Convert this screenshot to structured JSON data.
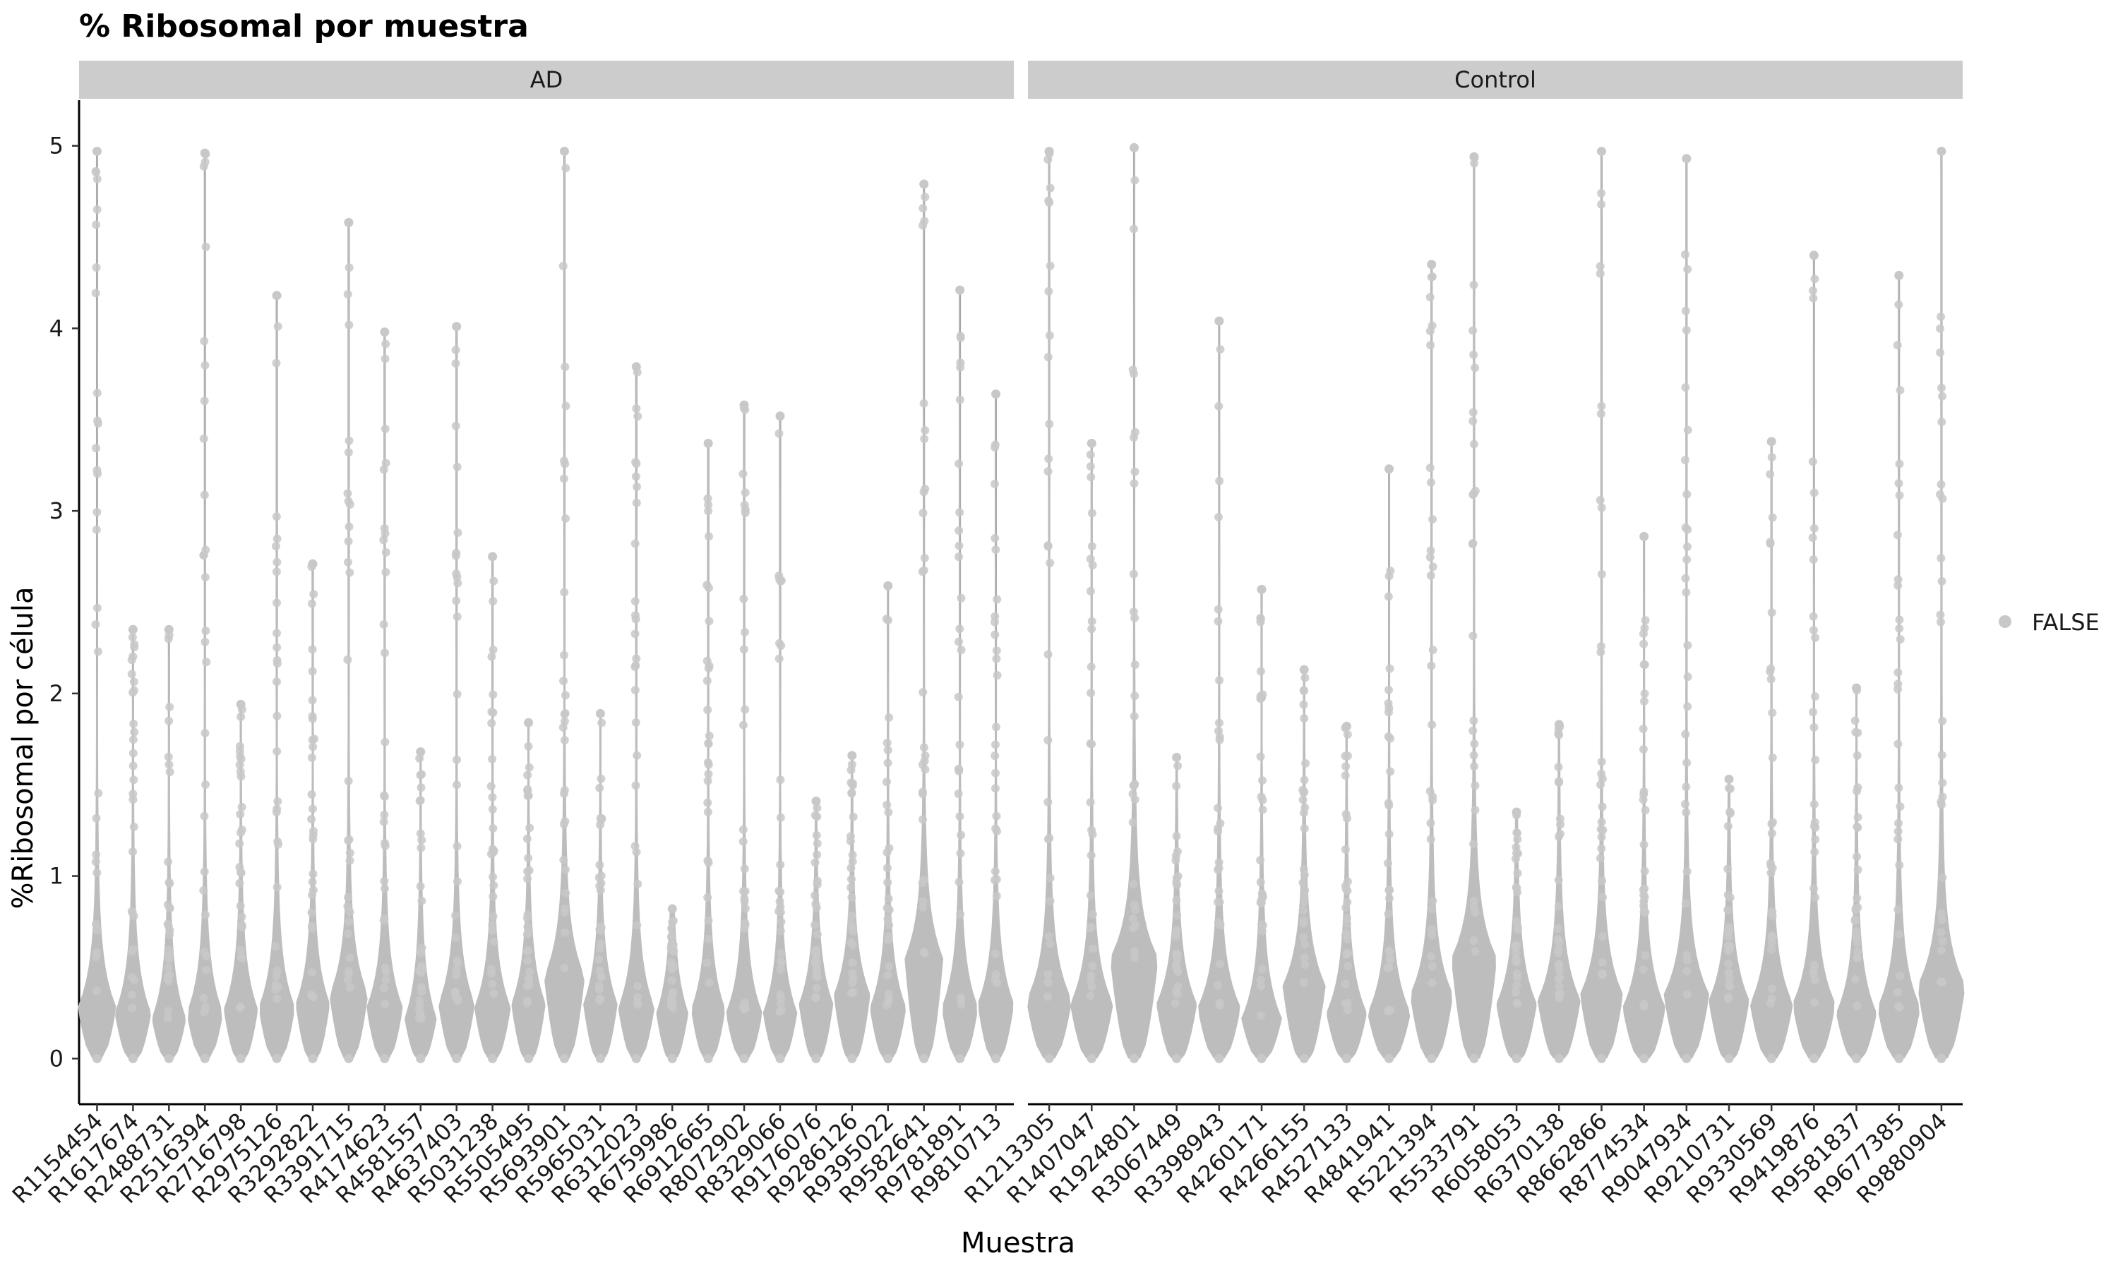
{
  "chart_data": {
    "type": "violin",
    "title": "% Ribosomal por muestra",
    "xlabel": "Muestra",
    "ylabel": "%Ribosomal por célula",
    "ylim": [
      -0.25,
      5.25
    ],
    "y_ticks": [
      0,
      1,
      2,
      3,
      4,
      5
    ],
    "grid": false,
    "legend": {
      "position": "right",
      "entries": [
        "FALSE"
      ]
    },
    "colors": {
      "violin": "#bdbdbd",
      "whisker": "#999999",
      "point": "#c8c8c8",
      "strip": "#cccccc"
    },
    "facets": [
      {
        "name": "AD",
        "samples": [
          {
            "sample": "R1154454",
            "max": 4.97,
            "mode": 0.28,
            "width": 0.9
          },
          {
            "sample": "R1617674",
            "max": 2.35,
            "mode": 0.25,
            "width": 0.85
          },
          {
            "sample": "R2488731",
            "max": 2.35,
            "mode": 0.22,
            "width": 0.8
          },
          {
            "sample": "R2516394",
            "max": 4.96,
            "mode": 0.25,
            "width": 0.85
          },
          {
            "sample": "R2716798",
            "max": 1.94,
            "mode": 0.27,
            "width": 0.8
          },
          {
            "sample": "R2975126",
            "max": 4.18,
            "mode": 0.28,
            "width": 0.85
          },
          {
            "sample": "R3292822",
            "max": 2.71,
            "mode": 0.3,
            "width": 0.8
          },
          {
            "sample": "R3391715",
            "max": 4.58,
            "mode": 0.35,
            "width": 0.9
          },
          {
            "sample": "R4174623",
            "max": 3.98,
            "mode": 0.28,
            "width": 0.85
          },
          {
            "sample": "R4581557",
            "max": 1.68,
            "mode": 0.22,
            "width": 0.75
          },
          {
            "sample": "R4637403",
            "max": 4.01,
            "mode": 0.3,
            "width": 0.85
          },
          {
            "sample": "R5031238",
            "max": 2.75,
            "mode": 0.28,
            "width": 0.85
          },
          {
            "sample": "R5505495",
            "max": 1.84,
            "mode": 0.3,
            "width": 0.8
          },
          {
            "sample": "R5693901",
            "max": 4.97,
            "mode": 0.45,
            "width": 0.95
          },
          {
            "sample": "R5965031",
            "max": 1.89,
            "mode": 0.3,
            "width": 0.8
          },
          {
            "sample": "R6312023",
            "max": 3.79,
            "mode": 0.28,
            "width": 0.85
          },
          {
            "sample": "R6759986",
            "max": 0.82,
            "mode": 0.25,
            "width": 0.75
          },
          {
            "sample": "R6912665",
            "max": 3.37,
            "mode": 0.27,
            "width": 0.8
          },
          {
            "sample": "R8072902",
            "max": 3.58,
            "mode": 0.25,
            "width": 0.85
          },
          {
            "sample": "R8329066",
            "max": 3.52,
            "mode": 0.25,
            "width": 0.8
          },
          {
            "sample": "R9176076",
            "max": 1.41,
            "mode": 0.3,
            "width": 0.8
          },
          {
            "sample": "R9286126",
            "max": 1.66,
            "mode": 0.35,
            "width": 0.85
          },
          {
            "sample": "R9395022",
            "max": 2.59,
            "mode": 0.28,
            "width": 0.85
          },
          {
            "sample": "R9582641",
            "max": 4.79,
            "mode": 0.55,
            "width": 0.9
          },
          {
            "sample": "R9781891",
            "max": 4.21,
            "mode": 0.28,
            "width": 0.85
          },
          {
            "sample": "R9810713",
            "max": 3.64,
            "mode": 0.3,
            "width": 0.85
          }
        ]
      },
      {
        "name": "Control",
        "samples": [
          {
            "sample": "R1213305",
            "max": 4.97,
            "mode": 0.32,
            "width": 0.9
          },
          {
            "sample": "R1407047",
            "max": 3.37,
            "mode": 0.3,
            "width": 0.85
          },
          {
            "sample": "R1924801",
            "max": 4.99,
            "mode": 0.55,
            "width": 0.95
          },
          {
            "sample": "R3067449",
            "max": 1.65,
            "mode": 0.3,
            "width": 0.8
          },
          {
            "sample": "R3398943",
            "max": 4.04,
            "mode": 0.28,
            "width": 0.85
          },
          {
            "sample": "R4260171",
            "max": 2.57,
            "mode": 0.22,
            "width": 0.8
          },
          {
            "sample": "R4266155",
            "max": 2.13,
            "mode": 0.4,
            "width": 0.85
          },
          {
            "sample": "R4527133",
            "max": 1.82,
            "mode": 0.25,
            "width": 0.8
          },
          {
            "sample": "R4841941",
            "max": 3.23,
            "mode": 0.25,
            "width": 0.85
          },
          {
            "sample": "R5221394",
            "max": 4.35,
            "mode": 0.35,
            "width": 0.85
          },
          {
            "sample": "R5533791",
            "max": 4.94,
            "mode": 0.55,
            "width": 0.9
          },
          {
            "sample": "R6058053",
            "max": 1.35,
            "mode": 0.3,
            "width": 0.8
          },
          {
            "sample": "R6370138",
            "max": 1.83,
            "mode": 0.32,
            "width": 0.85
          },
          {
            "sample": "R8662866",
            "max": 4.97,
            "mode": 0.35,
            "width": 0.85
          },
          {
            "sample": "R8774534",
            "max": 2.86,
            "mode": 0.28,
            "width": 0.85
          },
          {
            "sample": "R9047934",
            "max": 4.93,
            "mode": 0.35,
            "width": 0.9
          },
          {
            "sample": "R9210731",
            "max": 1.53,
            "mode": 0.32,
            "width": 0.8
          },
          {
            "sample": "R9330569",
            "max": 3.38,
            "mode": 0.3,
            "width": 0.85
          },
          {
            "sample": "R9419876",
            "max": 4.4,
            "mode": 0.3,
            "width": 0.85
          },
          {
            "sample": "R9581837",
            "max": 2.03,
            "mode": 0.25,
            "width": 0.8
          },
          {
            "sample": "R9677385",
            "max": 4.29,
            "mode": 0.28,
            "width": 0.85
          },
          {
            "sample": "R9880904",
            "max": 4.97,
            "mode": 0.4,
            "width": 0.95
          }
        ]
      }
    ]
  }
}
